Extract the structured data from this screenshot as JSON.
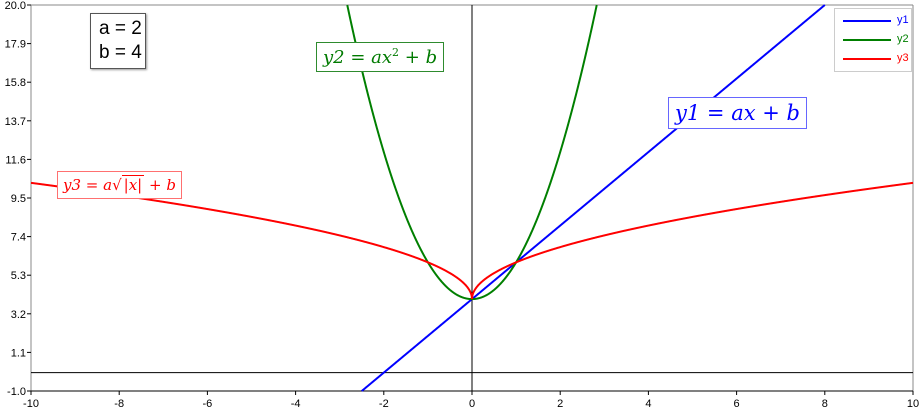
{
  "chart_data": {
    "type": "line",
    "title": "",
    "xlabel": "",
    "ylabel": "",
    "xlim": [
      -10,
      10
    ],
    "ylim": [
      -1.0,
      20.0
    ],
    "x_ticks": [
      "-10",
      "-8",
      "-6",
      "-4",
      "-2",
      "0",
      "2",
      "4",
      "6",
      "8",
      "10"
    ],
    "y_ticks": [
      "-1.0",
      "1.1",
      "3.2",
      "5.3",
      "7.4",
      "9.5",
      "11.6",
      "13.7",
      "15.8",
      "17.9",
      "20.0"
    ],
    "grid": false,
    "legend_position": "top-right",
    "parameters": {
      "a": 2,
      "b": 4
    },
    "params_text": [
      "a = 2",
      "b = 4"
    ],
    "series": [
      {
        "name": "y1",
        "formula": "a*x + b",
        "color": "#0000ff",
        "label": {
          "lhs": "y1",
          "rhs": "ax + b"
        }
      },
      {
        "name": "y2",
        "formula": "a*x^2 + b",
        "color": "#007f00",
        "label": {
          "lhs": "y2",
          "rhs_pre": "ax",
          "sup": "2",
          "rhs_post": " + b"
        }
      },
      {
        "name": "y3",
        "formula": "a*sqrt(|x|) + b",
        "color": "#ff0000",
        "label": {
          "lhs": "y3",
          "rhs_pre": "a",
          "sqrt_sym": "√",
          "sqrt_arg": "|x|",
          "rhs_post": " + b"
        }
      }
    ]
  }
}
